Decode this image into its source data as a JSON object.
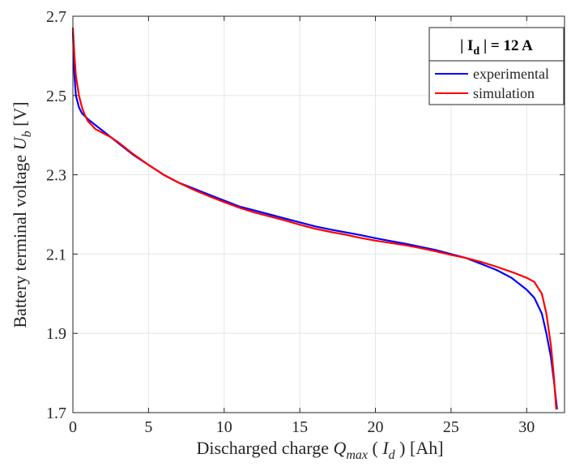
{
  "chart_data": {
    "type": "line",
    "xlabel": {
      "prefix": "Discharged charge ",
      "symbol": "Q",
      "symbol_sub": "max",
      "open": " ( ",
      "arg": "I",
      "arg_sub": "d",
      "close": " ) [Ah]"
    },
    "ylabel": {
      "prefix": "Battery terminal voltage  ",
      "symbol": "U",
      "symbol_sub": "b",
      "unit": " [V]"
    },
    "xlim": [
      0,
      32.5
    ],
    "ylim": [
      1.7,
      2.7
    ],
    "xticks": [
      0,
      5,
      10,
      15,
      20,
      25,
      30
    ],
    "xtick_labels": [
      "0",
      "5",
      "10",
      "15",
      "20",
      "25",
      "30"
    ],
    "yticks": [
      1.7,
      1.9,
      2.1,
      2.3,
      2.5,
      2.7
    ],
    "ytick_labels": [
      "1.7",
      "1.9",
      "2.1",
      "2.3",
      "2.5",
      "2.7"
    ],
    "grid": true,
    "legend": {
      "placement": "top-right",
      "title": {
        "open": "| I",
        "sub": "d",
        "close": " | = 12 A"
      }
    },
    "series": [
      {
        "name": "experimental",
        "color": "#0000ff",
        "x": [
          0,
          0.1,
          0.2,
          0.4,
          0.6,
          1.0,
          1.5,
          2,
          2.5,
          3,
          4,
          5,
          6,
          7,
          8,
          9,
          10,
          11,
          12,
          13,
          14,
          15,
          16,
          17,
          18,
          19,
          20,
          21,
          22,
          23,
          24,
          25,
          26,
          27,
          28,
          29,
          30,
          30.5,
          31,
          31.3,
          31.6,
          31.8,
          32.0
        ],
        "y": [
          2.66,
          2.55,
          2.5,
          2.47,
          2.455,
          2.44,
          2.425,
          2.41,
          2.395,
          2.38,
          2.35,
          2.325,
          2.3,
          2.28,
          2.265,
          2.25,
          2.235,
          2.22,
          2.21,
          2.2,
          2.19,
          2.18,
          2.17,
          2.162,
          2.155,
          2.148,
          2.14,
          2.133,
          2.126,
          2.118,
          2.11,
          2.1,
          2.09,
          2.075,
          2.06,
          2.04,
          2.01,
          1.99,
          1.95,
          1.9,
          1.84,
          1.78,
          1.71
        ]
      },
      {
        "name": "simulation",
        "color": "#ff0000",
        "x": [
          0,
          0.1,
          0.2,
          0.4,
          0.6,
          0.8,
          1.0,
          1.5,
          2,
          2.5,
          3,
          4,
          5,
          6,
          7,
          8,
          9,
          10,
          11,
          12,
          13,
          14,
          15,
          16,
          17,
          18,
          19,
          20,
          21,
          22,
          23,
          24,
          25,
          26,
          27,
          28,
          29,
          30,
          30.5,
          31,
          31.3,
          31.6,
          31.8,
          31.95
        ],
        "y": [
          2.67,
          2.6,
          2.55,
          2.5,
          2.47,
          2.45,
          2.435,
          2.415,
          2.405,
          2.395,
          2.382,
          2.352,
          2.325,
          2.3,
          2.28,
          2.262,
          2.246,
          2.231,
          2.217,
          2.205,
          2.195,
          2.185,
          2.174,
          2.164,
          2.156,
          2.149,
          2.141,
          2.134,
          2.128,
          2.122,
          2.115,
          2.107,
          2.098,
          2.09,
          2.08,
          2.068,
          2.055,
          2.04,
          2.03,
          2.0,
          1.95,
          1.87,
          1.79,
          1.71
        ]
      }
    ]
  }
}
